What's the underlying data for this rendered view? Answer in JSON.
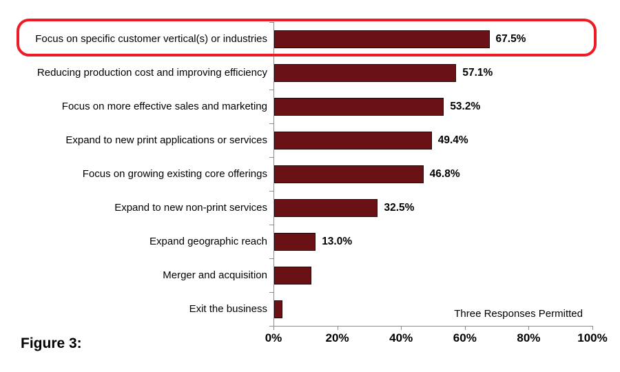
{
  "figure_label": "Figure 3:",
  "chart_data": {
    "type": "bar",
    "orientation": "horizontal",
    "title": "",
    "annotation": "Three Responses Permitted",
    "categories": [
      "Focus on specific customer vertical(s) or industries",
      "Reducing production cost and improving efficiency",
      "Focus on more effective sales and marketing",
      "Expand to new print applications or services",
      "Focus on growing existing core offerings",
      "Expand to new non-print services",
      "Expand geographic reach",
      "Merger and acquisition",
      "Exit the business"
    ],
    "values": [
      67.5,
      57.1,
      53.2,
      49.4,
      46.8,
      32.5,
      13.0,
      11.7,
      2.6
    ],
    "value_labels": [
      "67.5%",
      "57.1%",
      "53.2%",
      "49.4%",
      "46.8%",
      "32.5%",
      "13.0%",
      "",
      ""
    ],
    "x_ticks": [
      "0%",
      "20%",
      "40%",
      "60%",
      "80%",
      "100%"
    ],
    "x_tick_values": [
      0,
      20,
      40,
      60,
      80,
      100
    ],
    "xlim": [
      0,
      100
    ],
    "grid": false,
    "legend": "none",
    "highlight": {
      "category_index": 0,
      "style": "red-rounded-outline"
    },
    "colors": {
      "bar": "#6a1115",
      "bar_border": "#230608",
      "highlight_outline": "#ed1c24",
      "axis": "#8c8c8c",
      "text": "#000000"
    }
  }
}
